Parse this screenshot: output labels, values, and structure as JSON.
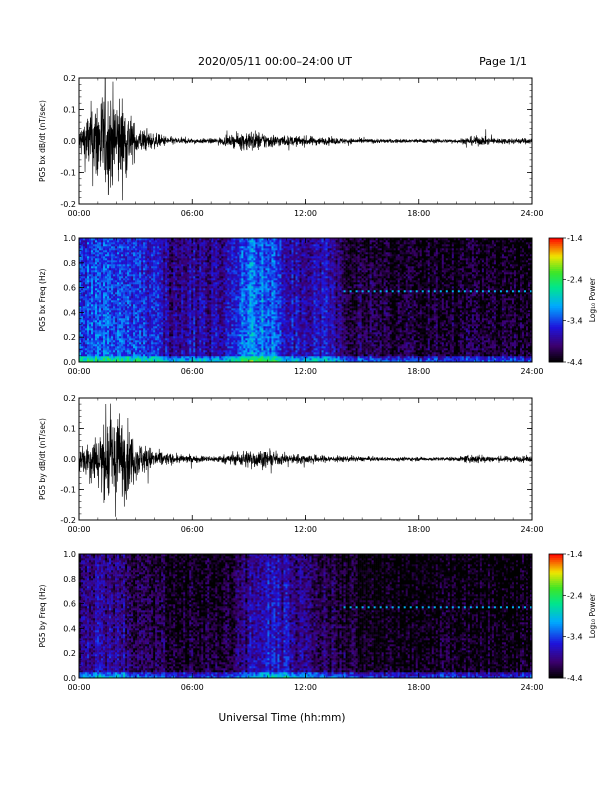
{
  "header": {
    "title": "2020/05/11  00:00–24:00 UT",
    "page": "Page 1/1"
  },
  "x_axis": {
    "label": "Universal Time (hh:mm)",
    "ticks": [
      "00:00",
      "06:00",
      "12:00",
      "18:00",
      "24:00"
    ]
  },
  "chart_data": [
    {
      "type": "line",
      "ylabel": "PG5 bx dB/dt (nT/sec)",
      "xlim": [
        0,
        24
      ],
      "ylim": [
        -0.2,
        0.2
      ],
      "yticks": [
        "0.2",
        "0.1",
        "0.0",
        "-0.1",
        "-0.2"
      ],
      "x": [
        0,
        1,
        1.5,
        2,
        2.5,
        3,
        4,
        5,
        6,
        7,
        8,
        9,
        10,
        11,
        12,
        13,
        14,
        15,
        16,
        17,
        18,
        19,
        20,
        21,
        22,
        23,
        24
      ],
      "envelope": [
        0.05,
        0.2,
        0.2,
        0.2,
        0.15,
        0.06,
        0.03,
        0.015,
        0.01,
        0.01,
        0.02,
        0.045,
        0.03,
        0.02,
        0.02,
        0.015,
        0.012,
        0.01,
        0.008,
        0.008,
        0.008,
        0.008,
        0.008,
        0.02,
        0.012,
        0.012,
        0.012
      ]
    },
    {
      "type": "heatmap",
      "ylabel": "PG5 bx Freq (Hz)",
      "xlim": [
        0,
        24
      ],
      "ylim": [
        0,
        1
      ],
      "yticks": [
        "1.0",
        "0.8",
        "0.6",
        "0.4",
        "0.2",
        "0.0"
      ],
      "colorbar": {
        "label": "Log₁₀ Power",
        "ticks": [
          "-1.4",
          "-2.4",
          "-3.4",
          "-4.4"
        ],
        "range": [
          -4.4,
          -1.4
        ]
      },
      "x": [
        0,
        1,
        2,
        3,
        4,
        5,
        6,
        7,
        8,
        9,
        10,
        11,
        12,
        13,
        14,
        15,
        16,
        17,
        18,
        19,
        20,
        21,
        22,
        23,
        24
      ],
      "level": [
        -3.4,
        -3.3,
        -3.3,
        -3.4,
        -3.5,
        -3.9,
        -3.7,
        -3.8,
        -3.6,
        -3.1,
        -3.2,
        -3.6,
        -3.7,
        -3.6,
        -4.0,
        -4.1,
        -4.1,
        -4.2,
        -4.2,
        -4.2,
        -4.2,
        -4.2,
        -4.2,
        -4.2,
        -4.2
      ],
      "line_freq": 0.57,
      "line_start": 13.8
    },
    {
      "type": "line",
      "ylabel": "PG5 by dB/dt (nT/sec)",
      "xlim": [
        0,
        24
      ],
      "ylim": [
        -0.2,
        0.2
      ],
      "yticks": [
        "0.2",
        "0.1",
        "0.0",
        "-0.1",
        "-0.2"
      ],
      "x": [
        0,
        1,
        1.5,
        2,
        2.5,
        3,
        4,
        5,
        6,
        7,
        8,
        9,
        10,
        11,
        12,
        13,
        14,
        15,
        16,
        17,
        18,
        19,
        20,
        21,
        22,
        23,
        24
      ],
      "envelope": [
        0.05,
        0.12,
        0.18,
        0.2,
        0.16,
        0.08,
        0.04,
        0.02,
        0.015,
        0.012,
        0.02,
        0.04,
        0.035,
        0.02,
        0.02,
        0.015,
        0.012,
        0.01,
        0.008,
        0.008,
        0.008,
        0.008,
        0.008,
        0.02,
        0.012,
        0.012,
        0.012
      ]
    },
    {
      "type": "heatmap",
      "ylabel": "PG5 by Freq (Hz)",
      "xlim": [
        0,
        24
      ],
      "ylim": [
        0,
        1
      ],
      "yticks": [
        "1.0",
        "0.8",
        "0.6",
        "0.4",
        "0.2",
        "0.0"
      ],
      "colorbar": {
        "label": "Log₁₀ Power",
        "ticks": [
          "-1.4",
          "-2.4",
          "-3.4",
          "-4.4"
        ],
        "range": [
          -4.4,
          -1.4
        ]
      },
      "x": [
        0,
        1,
        2,
        3,
        4,
        5,
        6,
        7,
        8,
        9,
        10,
        11,
        12,
        13,
        14,
        15,
        16,
        17,
        18,
        19,
        20,
        21,
        22,
        23,
        24
      ],
      "level": [
        -3.9,
        -3.8,
        -3.8,
        -4.0,
        -4.1,
        -4.2,
        -4.2,
        -4.2,
        -4.1,
        -3.8,
        -3.6,
        -3.7,
        -3.9,
        -4.0,
        -4.2,
        -4.3,
        -4.3,
        -4.3,
        -4.3,
        -4.3,
        -4.3,
        -4.3,
        -4.3,
        -4.3,
        -4.3
      ],
      "line_freq": 0.57,
      "line_start": 13.8
    }
  ]
}
